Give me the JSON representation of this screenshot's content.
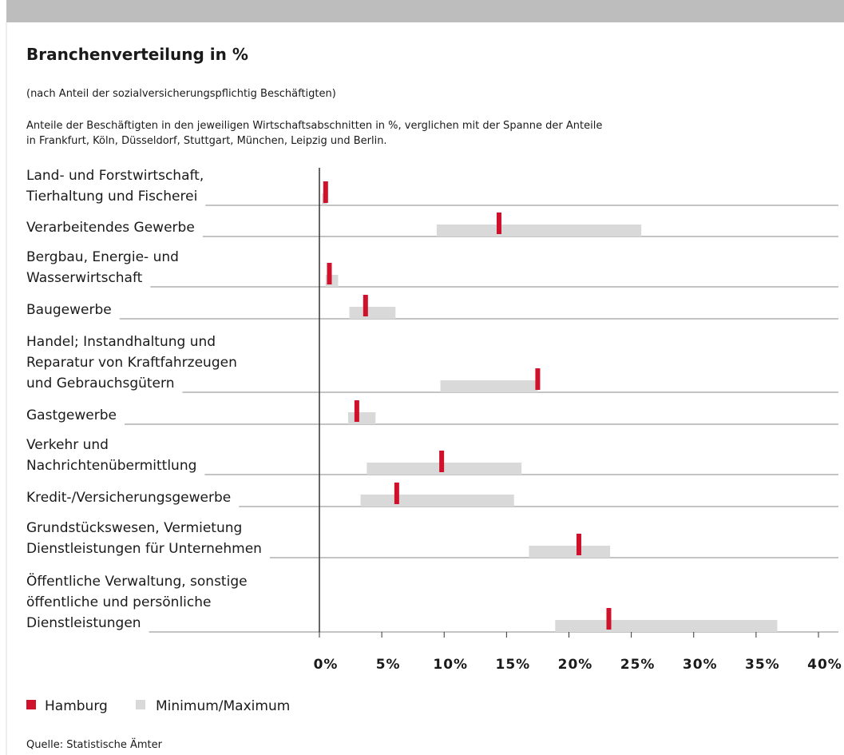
{
  "chart_data": {
    "type": "range_marker",
    "title": "Branchenverteilung in %",
    "subtitle": "(nach Anteil der sozialversicherungspflichtig Beschäftigten)",
    "description": [
      "Anteile der Beschäftigten in den jeweiligen Wirtschaftsabschnitten in %, verglichen mit der Spanne der Anteile",
      "in Frankfurt, Köln, Düsseldorf, Stuttgart, München, Leipzig und Berlin."
    ],
    "categories": [
      [
        "Land- und Forstwirtschaft,",
        "Tierhaltung und Fischerei"
      ],
      [
        "Verarbeitendes Gewerbe"
      ],
      [
        "Bergbau, Energie- und",
        "Wasserwirtschaft"
      ],
      [
        "Baugewerbe"
      ],
      [
        "Handel; Instandhaltung und",
        "Reparatur von Kraftfahrzeugen",
        "und Gebrauchsgütern"
      ],
      [
        "Gastgewerbe"
      ],
      [
        "Verkehr und",
        "Nachrichtenübermittlung"
      ],
      [
        "Kredit-/Versicherungsgewerbe"
      ],
      [
        "Grundstückswesen, Vermietung",
        "Dienstleistungen für Unternehmen"
      ],
      [
        "Öffentliche Verwaltung, sonstige",
        "öffentliche und persönliche",
        "Dienstleistungen"
      ]
    ],
    "series": [
      {
        "name": "Hamburg",
        "color": "#d0112b",
        "values": [
          0.5,
          14.4,
          0.8,
          3.7,
          17.5,
          3.0,
          9.8,
          6.2,
          20.8,
          23.2
        ]
      },
      {
        "name": "Minimum/Maximum",
        "color": "#d9d9d9",
        "min": [
          0.2,
          9.4,
          0.5,
          2.4,
          9.7,
          2.3,
          3.8,
          3.3,
          16.8,
          18.9
        ],
        "max": [
          0.6,
          25.8,
          1.5,
          6.1,
          17.5,
          4.5,
          16.2,
          15.6,
          23.3,
          36.7
        ]
      }
    ],
    "xlim": [
      0,
      40
    ],
    "xticks": [
      {
        "value": 0,
        "label": "0%"
      },
      {
        "value": 5,
        "label": "5%"
      },
      {
        "value": 10,
        "label": "10%"
      },
      {
        "value": 15,
        "label": "15%"
      },
      {
        "value": 20,
        "label": "20%"
      },
      {
        "value": 25,
        "label": "25%"
      },
      {
        "value": 30,
        "label": "30%"
      },
      {
        "value": 35,
        "label": "35%"
      },
      {
        "value": 40,
        "label": "40%"
      }
    ],
    "source": "Quelle: Statistische Ämter"
  }
}
